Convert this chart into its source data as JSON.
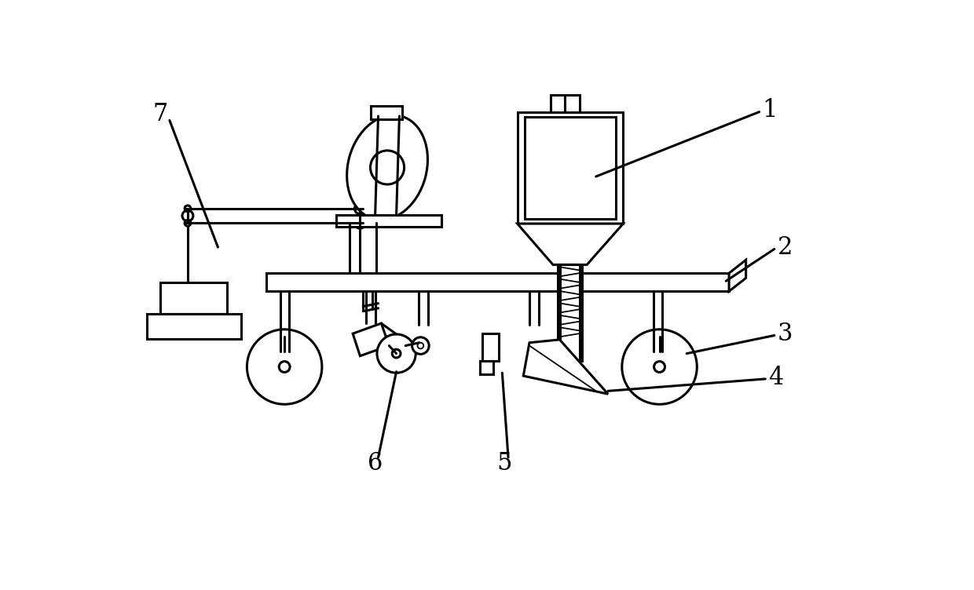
{
  "bg_color": "#ffffff",
  "lc": "#000000",
  "lw": 2.2,
  "lw_thin": 1.3,
  "label_fontsize": 22,
  "figsize": [
    12.4,
    7.52
  ],
  "dpi": 100
}
